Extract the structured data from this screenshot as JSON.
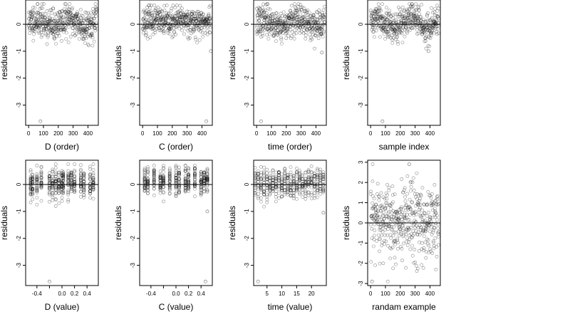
{
  "chart_data": [
    {
      "type": "scatter",
      "panel_id": "p1",
      "xlabel": "D (order)",
      "ylabel": "residuals",
      "xlim": [
        -20,
        470
      ],
      "ylim": [
        -3.75,
        0.9
      ],
      "xticks": [
        0,
        100,
        200,
        300,
        400
      ],
      "xtick_labels": [
        "0",
        "100",
        "200",
        "300",
        "400"
      ],
      "yticks": [
        0,
        -1,
        -2,
        -3
      ],
      "ytick_labels": [
        "0",
        "-1",
        "-2",
        "-3"
      ],
      "hline": 0,
      "outliers": [
        {
          "x": 80,
          "y": -3.6
        }
      ],
      "points": {
        "kind": "index",
        "n": 460,
        "x_range": [
          0,
          460
        ],
        "center": 0.05,
        "spread": 0.3,
        "min": -1.05,
        "max": 0.75,
        "seed": 11,
        "wave": 0.12
      }
    },
    {
      "type": "scatter",
      "panel_id": "p2",
      "xlabel": "C (order)",
      "ylabel": "residuals",
      "xlim": [
        -20,
        470
      ],
      "ylim": [
        -3.75,
        0.9
      ],
      "xticks": [
        0,
        100,
        200,
        300,
        400
      ],
      "xtick_labels": [
        "0",
        "100",
        "200",
        "300",
        "400"
      ],
      "yticks": [
        0,
        -1,
        -2,
        -3
      ],
      "ytick_labels": [
        "0",
        "-1",
        "-2",
        "-3"
      ],
      "hline": 0,
      "outliers": [
        {
          "x": 430,
          "y": -3.6
        },
        {
          "x": 460,
          "y": -1.0
        }
      ],
      "points": {
        "kind": "index",
        "n": 460,
        "x_range": [
          0,
          460
        ],
        "center": 0.1,
        "spread": 0.25,
        "min": -0.8,
        "max": 0.7,
        "seed": 23,
        "wave": 0.05
      }
    },
    {
      "type": "scatter",
      "panel_id": "p3",
      "xlabel": "time (order)",
      "ylabel": "residuals",
      "xlim": [
        -20,
        470
      ],
      "ylim": [
        -3.75,
        0.9
      ],
      "xticks": [
        0,
        100,
        200,
        300,
        400
      ],
      "xtick_labels": [
        "0",
        "100",
        "200",
        "300",
        "400"
      ],
      "yticks": [
        0,
        -1,
        -2,
        -3
      ],
      "ytick_labels": [
        "0",
        "-1",
        "-2",
        "-3"
      ],
      "hline": 0,
      "outliers": [
        {
          "x": 30,
          "y": -3.6
        },
        {
          "x": 440,
          "y": -1.05
        }
      ],
      "points": {
        "kind": "index",
        "n": 460,
        "x_range": [
          0,
          460
        ],
        "center": 0.05,
        "spread": 0.28,
        "min": -0.9,
        "max": 0.75,
        "seed": 37,
        "wave": 0.1
      }
    },
    {
      "type": "scatter",
      "panel_id": "p4",
      "xlabel": "sample index",
      "ylabel": "residuals",
      "xlim": [
        -20,
        470
      ],
      "ylim": [
        -3.75,
        0.9
      ],
      "xticks": [
        0,
        100,
        200,
        300,
        400
      ],
      "xtick_labels": [
        "0",
        "100",
        "200",
        "300",
        "400"
      ],
      "yticks": [
        0,
        -1,
        -2,
        -3
      ],
      "ytick_labels": [
        "0",
        "-1",
        "-2",
        "-3"
      ],
      "hline": 0,
      "outliers": [
        {
          "x": 80,
          "y": -3.6
        },
        {
          "x": 390,
          "y": -1.0
        }
      ],
      "points": {
        "kind": "index",
        "n": 460,
        "x_range": [
          0,
          460
        ],
        "center": 0.05,
        "spread": 0.28,
        "min": -0.9,
        "max": 0.75,
        "seed": 41,
        "wave": 0.2
      }
    },
    {
      "type": "scatter",
      "panel_id": "p5",
      "xlabel": "D (value)",
      "ylabel": "residuals",
      "xlim": [
        -0.58,
        0.58
      ],
      "ylim": [
        -3.75,
        0.9
      ],
      "xticks": [
        -0.4,
        -0.2,
        0.0,
        0.2,
        0.4
      ],
      "xtick_labels": [
        "-0.4",
        "",
        "0.0",
        "0.2",
        "0.4"
      ],
      "yticks": [
        0,
        -1,
        -2,
        -3
      ],
      "ytick_labels": [
        "0",
        "-1",
        "-2",
        "-3"
      ],
      "hline": 0,
      "outliers": [
        {
          "x": -0.2,
          "y": -3.6
        }
      ],
      "points": {
        "kind": "columns",
        "columns": [
          -0.5,
          -0.47,
          -0.4,
          -0.33,
          -0.2,
          -0.15,
          -0.1,
          -0.05,
          0.0,
          0.02,
          0.1,
          0.15,
          0.2,
          0.3,
          0.35,
          0.45,
          0.5
        ],
        "per_column": 26,
        "center": 0.05,
        "spread": 0.3,
        "min": -1.05,
        "max": 0.75,
        "seed": 53
      }
    },
    {
      "type": "scatter",
      "panel_id": "p6",
      "xlabel": "C (value)",
      "ylabel": "residuals",
      "xlim": [
        -0.58,
        0.58
      ],
      "ylim": [
        -3.75,
        0.9
      ],
      "xticks": [
        -0.4,
        -0.2,
        0.0,
        0.2,
        0.4
      ],
      "xtick_labels": [
        "-0.4",
        "",
        "0.0",
        "0.2",
        "0.4"
      ],
      "yticks": [
        0,
        -1,
        -2,
        -3
      ],
      "ytick_labels": [
        "0",
        "-1",
        "-2",
        "-3"
      ],
      "hline": 0,
      "outliers": [
        {
          "x": 0.47,
          "y": -3.6
        },
        {
          "x": 0.5,
          "y": -1.0
        }
      ],
      "points": {
        "kind": "columns",
        "columns": [
          -0.5,
          -0.45,
          -0.35,
          -0.25,
          -0.2,
          -0.1,
          0.0,
          0.05,
          0.15,
          0.2,
          0.3,
          0.4,
          0.45,
          0.5
        ],
        "per_column": 30,
        "center": 0.1,
        "spread": 0.25,
        "min": -0.8,
        "max": 0.7,
        "seed": 67
      }
    },
    {
      "type": "scatter",
      "panel_id": "p7",
      "xlabel": "time (value)",
      "ylabel": "residuals",
      "xlim": [
        0.5,
        25
      ],
      "ylim": [
        -3.75,
        0.9
      ],
      "xticks": [
        5,
        10,
        15,
        20
      ],
      "xtick_labels": [
        "5",
        "10",
        "15",
        "20"
      ],
      "yticks": [
        0,
        -1,
        -2,
        -3
      ],
      "ytick_labels": [
        "0",
        "-1",
        "-2",
        "-3"
      ],
      "hline": 0,
      "outliers": [
        {
          "x": 2,
          "y": -3.6
        },
        {
          "x": 24,
          "y": -1.05
        }
      ],
      "points": {
        "kind": "columns",
        "columns": [
          1,
          2,
          3,
          4,
          5,
          6,
          7,
          8,
          9,
          10,
          11,
          12,
          13,
          14,
          15,
          16,
          17,
          18,
          19,
          20,
          21,
          22,
          23,
          24
        ],
        "per_column": 19,
        "center": 0.05,
        "spread": 0.28,
        "min": -0.9,
        "max": 0.75,
        "seed": 79
      }
    },
    {
      "type": "scatter",
      "panel_id": "p8",
      "xlabel": "randam example",
      "ylabel": "residuals",
      "xlim": [
        -20,
        470
      ],
      "ylim": [
        -3.1,
        3.1
      ],
      "xticks": [
        0,
        100,
        200,
        300,
        400
      ],
      "xtick_labels": [
        "0",
        "100",
        "200",
        "300",
        "400"
      ],
      "yticks": [
        3,
        2,
        1,
        0,
        -1,
        -2,
        -3
      ],
      "ytick_labels": [
        "3",
        "2",
        "1",
        "0",
        "-1",
        "-2",
        "-3"
      ],
      "hline": 0,
      "outliers": [
        {
          "x": 10,
          "y": -2.9
        },
        {
          "x": 260,
          "y": 2.9
        }
      ],
      "points": {
        "kind": "index",
        "n": 460,
        "x_range": [
          0,
          460
        ],
        "center": 0,
        "spread": 1.0,
        "min": -2.9,
        "max": 2.9,
        "seed": 97,
        "wave": 0
      }
    }
  ]
}
